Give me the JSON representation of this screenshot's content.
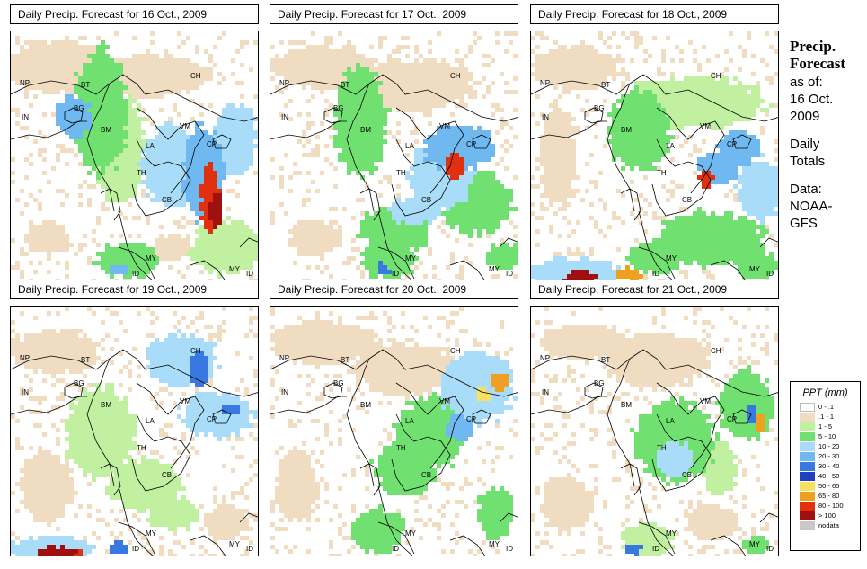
{
  "panels": [
    {
      "title": "Daily Precip. Forecast for  16 Oct., 2009"
    },
    {
      "title": "Daily Precip. Forecast for  17 Oct., 2009"
    },
    {
      "title": "Daily Precip. Forecast for  18 Oct., 2009"
    },
    {
      "title": "Daily Precip. Forecast for  19 Oct., 2009"
    },
    {
      "title": "Daily Precip. Forecast for  20 Oct., 2009"
    },
    {
      "title": "Daily Precip. Forecast for  21 Oct., 2009"
    }
  ],
  "map_labels": {
    "np": "NP",
    "bt": "BT",
    "bg": "BG",
    "in": "IN",
    "ch": "CH",
    "bm": "BM",
    "la": "LA",
    "vm": "VM",
    "th": "TH",
    "cb": "CB",
    "my": "MY",
    "id": "ID",
    "cp": "CP"
  },
  "sidebar": {
    "title_line1": "Precip.",
    "title_line2": "Forecast",
    "line1": "as of:",
    "line2": "16 Oct.",
    "line3": "2009",
    "line4": "Daily",
    "line5": "Totals",
    "line6": "Data:",
    "line7": "NOAA-",
    "line8": "GFS"
  },
  "legend": {
    "title": "PPT (mm)",
    "items": [
      {
        "label": "0 - .1",
        "color": "#ffffff"
      },
      {
        "label": ".1 - 1",
        "color": "#f0dcc0"
      },
      {
        "label": "1 - 5",
        "color": "#c0f0a0"
      },
      {
        "label": "5 - 10",
        "color": "#70e070"
      },
      {
        "label": "10 - 20",
        "color": "#a8dcf8"
      },
      {
        "label": "20 - 30",
        "color": "#70b8f0"
      },
      {
        "label": "30 - 40",
        "color": "#3878e0"
      },
      {
        "label": "40 - 50",
        "color": "#2040c0"
      },
      {
        "label": "50 - 65",
        "color": "#f8e060"
      },
      {
        "label": "65 - 80",
        "color": "#f0a020"
      },
      {
        "label": "80 - 100",
        "color": "#e03010"
      },
      {
        "label": "> 100",
        "color": "#a01010"
      },
      {
        "label": "nodata",
        "color": "#c8c8c8"
      }
    ]
  }
}
